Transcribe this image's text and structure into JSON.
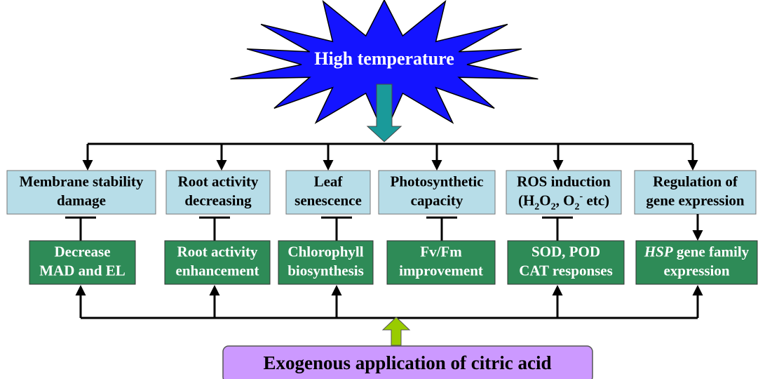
{
  "header": {
    "title": "High temperature"
  },
  "effects": [
    {
      "lines": [
        "Membrane stability",
        "damage"
      ]
    },
    {
      "lines": [
        "Root activity",
        "decreasing"
      ]
    },
    {
      "lines": [
        "Leaf",
        "senescence"
      ]
    },
    {
      "lines": [
        "Photosynthetic",
        "capacity"
      ]
    },
    {
      "lines": [
        "ROS induction",
        [
          {
            "t": "(H"
          },
          {
            "t": "2",
            "sub": true
          },
          {
            "t": "O"
          },
          {
            "t": "2",
            "sub": true
          },
          {
            "t": ", O"
          },
          {
            "t": "2",
            "sub": true
          },
          {
            "t": "-",
            "sup": true
          },
          {
            "t": " etc)"
          }
        ]
      ]
    },
    {
      "lines": [
        "Regulation of",
        "gene expression"
      ]
    }
  ],
  "responses": [
    {
      "lines": [
        "Decrease",
        "MAD and EL"
      ]
    },
    {
      "lines": [
        "Root activity",
        "enhancement"
      ]
    },
    {
      "lines": [
        "Chlorophyll",
        "biosynthesis"
      ]
    },
    {
      "lines": [
        "Fv/Fm",
        "improvement"
      ]
    },
    {
      "lines": [
        "SOD, POD",
        "CAT responses"
      ]
    },
    {
      "lines": [
        [
          {
            "t": "HSP",
            "italic": true
          },
          {
            "t": " gene family"
          }
        ],
        "expression"
      ]
    }
  ],
  "footer": {
    "label": "Exogenous application of citric acid"
  }
}
